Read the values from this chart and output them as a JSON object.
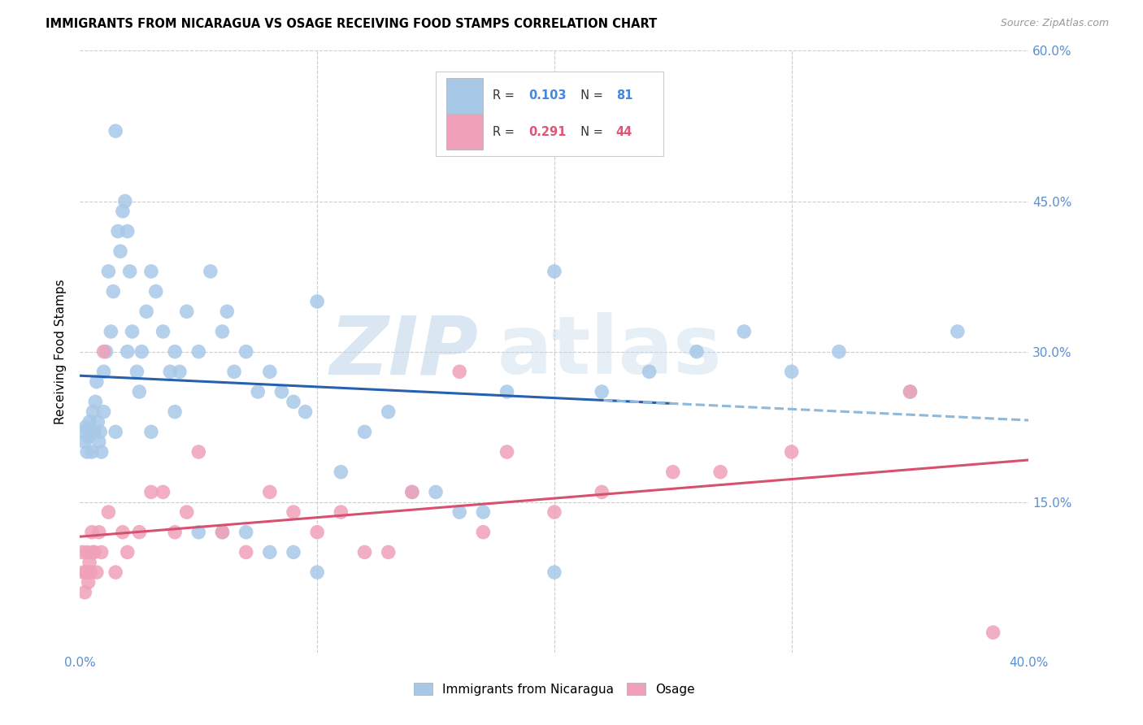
{
  "title": "IMMIGRANTS FROM NICARAGUA VS OSAGE RECEIVING FOOD STAMPS CORRELATION CHART",
  "source": "Source: ZipAtlas.com",
  "ylabel": "Receiving Food Stamps",
  "yaxis_right_labels": [
    "15.0%",
    "30.0%",
    "45.0%",
    "60.0%"
  ],
  "xaxis_labels": [
    "0.0%",
    "",
    "",
    "",
    "40.0%"
  ],
  "legend_blue_label": "Immigrants from Nicaragua",
  "legend_pink_label": "Osage",
  "blue_color": "#A8C8E8",
  "pink_color": "#F0A0B8",
  "blue_line_color": "#2860B0",
  "pink_line_color": "#D85070",
  "blue_dashed_color": "#90B8D8",
  "watermark_zip": "ZIP",
  "watermark_atlas": "atlas",
  "grid_color": "#CCCCCC",
  "blue_x": [
    0.15,
    0.2,
    0.25,
    0.3,
    0.35,
    0.4,
    0.45,
    0.5,
    0.55,
    0.6,
    0.65,
    0.7,
    0.75,
    0.8,
    0.85,
    0.9,
    1.0,
    1.0,
    1.1,
    1.2,
    1.3,
    1.4,
    1.5,
    1.6,
    1.7,
    1.8,
    1.9,
    2.0,
    2.1,
    2.2,
    2.4,
    2.5,
    2.6,
    2.8,
    3.0,
    3.2,
    3.5,
    3.8,
    4.0,
    4.2,
    4.5,
    5.0,
    5.5,
    6.0,
    6.2,
    6.5,
    7.0,
    7.5,
    8.0,
    8.5,
    9.0,
    9.5,
    10.0,
    11.0,
    12.0,
    13.0,
    14.0,
    15.0,
    16.0,
    17.0,
    18.0,
    20.0,
    22.0,
    24.0,
    26.0,
    28.0,
    30.0,
    32.0,
    35.0,
    37.0,
    1.5,
    2.0,
    3.0,
    4.0,
    5.0,
    6.0,
    7.0,
    8.0,
    9.0,
    10.0,
    20.0
  ],
  "blue_y": [
    22.0,
    21.0,
    22.5,
    20.0,
    21.5,
    23.0,
    22.0,
    20.0,
    24.0,
    22.0,
    25.0,
    27.0,
    23.0,
    21.0,
    22.0,
    20.0,
    28.0,
    24.0,
    30.0,
    38.0,
    32.0,
    36.0,
    22.0,
    42.0,
    40.0,
    44.0,
    45.0,
    42.0,
    38.0,
    32.0,
    28.0,
    26.0,
    30.0,
    34.0,
    38.0,
    36.0,
    32.0,
    28.0,
    30.0,
    28.0,
    34.0,
    30.0,
    38.0,
    32.0,
    34.0,
    28.0,
    30.0,
    26.0,
    28.0,
    26.0,
    25.0,
    24.0,
    35.0,
    18.0,
    22.0,
    24.0,
    16.0,
    16.0,
    14.0,
    14.0,
    26.0,
    38.0,
    26.0,
    28.0,
    30.0,
    32.0,
    28.0,
    30.0,
    26.0,
    32.0,
    52.0,
    30.0,
    22.0,
    24.0,
    12.0,
    12.0,
    12.0,
    10.0,
    10.0,
    8.0,
    8.0
  ],
  "pink_x": [
    0.1,
    0.15,
    0.2,
    0.25,
    0.3,
    0.35,
    0.4,
    0.45,
    0.5,
    0.55,
    0.6,
    0.7,
    0.8,
    0.9,
    1.0,
    1.2,
    1.5,
    1.8,
    2.0,
    2.5,
    3.0,
    3.5,
    4.0,
    4.5,
    5.0,
    6.0,
    7.0,
    8.0,
    9.0,
    10.0,
    11.0,
    12.0,
    13.0,
    14.0,
    16.0,
    17.0,
    18.0,
    20.0,
    22.0,
    25.0,
    27.0,
    30.0,
    35.0,
    38.5
  ],
  "pink_y": [
    10.0,
    8.0,
    6.0,
    8.0,
    10.0,
    7.0,
    9.0,
    8.0,
    12.0,
    10.0,
    10.0,
    8.0,
    12.0,
    10.0,
    30.0,
    14.0,
    8.0,
    12.0,
    10.0,
    12.0,
    16.0,
    16.0,
    12.0,
    14.0,
    20.0,
    12.0,
    10.0,
    16.0,
    14.0,
    12.0,
    14.0,
    10.0,
    10.0,
    16.0,
    28.0,
    12.0,
    20.0,
    14.0,
    16.0,
    18.0,
    18.0,
    20.0,
    26.0,
    2.0
  ]
}
